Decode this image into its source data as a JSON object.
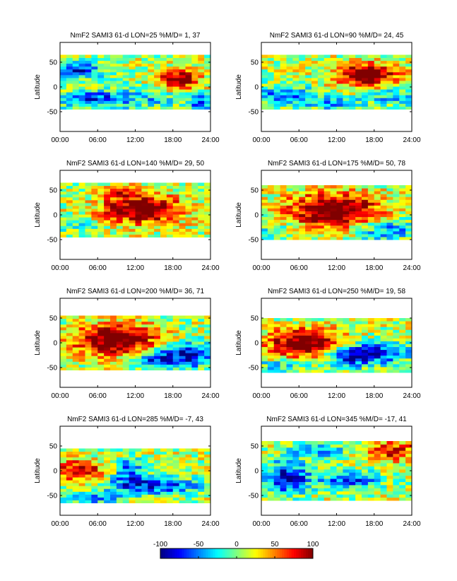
{
  "figure": {
    "ylabel": "Latitude"
  },
  "colorbar": {
    "range": [
      -100,
      100
    ],
    "ticks": [
      "-100",
      "-50",
      "0",
      "50",
      "100"
    ],
    "colormap": "jet"
  },
  "chart_data": [
    {
      "type": "heatmap",
      "title": "NmF2 SAMI3 61-d LON=25 %M/D=   1,  37",
      "xlabel": "",
      "ylabel": "Latitude",
      "xticks": [
        "00:00",
        "06:00",
        "12:00",
        "18:00",
        "24:00"
      ],
      "yticks": [
        "50",
        "0",
        "-50"
      ],
      "xlim": [
        0,
        24
      ],
      "ylim": [
        -90,
        90
      ],
      "data_lat": [
        -45,
        65
      ],
      "x_bins": 24,
      "lat_bins": 19,
      "value_range": [
        -100,
        100
      ],
      "features": [
        {
          "t": 19,
          "lat": 15,
          "w": 2.4,
          "h": 14,
          "v": 100
        },
        {
          "t": 3,
          "lat": 35,
          "w": 2.5,
          "h": 12,
          "v": -90
        },
        {
          "t": 5,
          "lat": -25,
          "w": 3.5,
          "h": 12,
          "v": -65
        },
        {
          "t": 13,
          "lat": -20,
          "w": 5,
          "h": 16,
          "v": -40
        },
        {
          "t": 22.5,
          "lat": -30,
          "w": 1.5,
          "h": 10,
          "v": -75
        }
      ]
    },
    {
      "type": "heatmap",
      "title": "NmF2 SAMI3 61-d LON=90 %M/D=  24,  45",
      "xlabel": "",
      "ylabel": "Latitude",
      "xticks": [
        "00:00",
        "06:00",
        "12:00",
        "18:00",
        "24:00"
      ],
      "yticks": [
        "50",
        "0",
        "-50"
      ],
      "xlim": [
        0,
        24
      ],
      "ylim": [
        -90,
        90
      ],
      "data_lat": [
        -45,
        65
      ],
      "x_bins": 24,
      "lat_bins": 19,
      "value_range": [
        -100,
        100
      ],
      "features": [
        {
          "t": 17,
          "lat": 25,
          "w": 3.5,
          "h": 16,
          "v": 110
        },
        {
          "t": 3,
          "lat": -15,
          "w": 3.5,
          "h": 12,
          "v": -65
        },
        {
          "t": 11,
          "lat": -30,
          "w": 3,
          "h": 10,
          "v": -55
        },
        {
          "t": 21,
          "lat": -20,
          "w": 3,
          "h": 14,
          "v": -40
        }
      ]
    },
    {
      "type": "heatmap",
      "title": "NmF2 SAMI3 61-d LON=140 %M/D=  29,  50",
      "xlabel": "",
      "ylabel": "Latitude",
      "xticks": [
        "00:00",
        "06:00",
        "12:00",
        "18:00",
        "24:00"
      ],
      "yticks": [
        "50",
        "0",
        "-50"
      ],
      "xlim": [
        0,
        24
      ],
      "ylim": [
        -90,
        90
      ],
      "data_lat": [
        -45,
        65
      ],
      "x_bins": 24,
      "lat_bins": 19,
      "value_range": [
        -100,
        100
      ],
      "features": [
        {
          "t": 13,
          "lat": 12,
          "w": 4.5,
          "h": 20,
          "v": 110
        },
        {
          "t": 10,
          "lat": 50,
          "w": 2,
          "h": 10,
          "v": 60
        },
        {
          "t": 3,
          "lat": -20,
          "w": 3,
          "h": 12,
          "v": -20
        }
      ]
    },
    {
      "type": "heatmap",
      "title": "NmF2 SAMI3 61-d LON=175 %M/D=  50,  78",
      "xlabel": "",
      "ylabel": "Latitude",
      "xticks": [
        "00:00",
        "06:00",
        "12:00",
        "18:00",
        "24:00"
      ],
      "yticks": [
        "50",
        "0",
        "-50"
      ],
      "xlim": [
        0,
        24
      ],
      "ylim": [
        -90,
        90
      ],
      "data_lat": [
        -50,
        60
      ],
      "x_bins": 24,
      "lat_bins": 19,
      "value_range": [
        -100,
        100
      ],
      "features": [
        {
          "t": 11.5,
          "lat": 10,
          "w": 5,
          "h": 24,
          "v": 120
        },
        {
          "t": 20,
          "lat": -30,
          "w": 3.5,
          "h": 14,
          "v": -60
        },
        {
          "t": 2,
          "lat": -25,
          "w": 2.5,
          "h": 14,
          "v": -25
        }
      ]
    },
    {
      "type": "heatmap",
      "title": "NmF2 SAMI3 61-d LON=200 %M/D=  36,  71",
      "xlabel": "",
      "ylabel": "Latitude",
      "xticks": [
        "00:00",
        "06:00",
        "12:00",
        "18:00",
        "24:00"
      ],
      "yticks": [
        "50",
        "0",
        "-50"
      ],
      "xlim": [
        0,
        24
      ],
      "ylim": [
        -90,
        90
      ],
      "data_lat": [
        -55,
        55
      ],
      "x_bins": 24,
      "lat_bins": 19,
      "value_range": [
        -100,
        100
      ],
      "features": [
        {
          "t": 9,
          "lat": 5,
          "w": 4.5,
          "h": 22,
          "v": 120
        },
        {
          "t": 20,
          "lat": -25,
          "w": 4,
          "h": 18,
          "v": -90
        },
        {
          "t": 14,
          "lat": -35,
          "w": 2.5,
          "h": 10,
          "v": -60
        }
      ]
    },
    {
      "type": "heatmap",
      "title": "NmF2 SAMI3 61-d LON=250 %M/D=  19,  58",
      "xlabel": "",
      "ylabel": "Latitude",
      "xticks": [
        "00:00",
        "06:00",
        "12:00",
        "18:00",
        "24:00"
      ],
      "yticks": [
        "50",
        "0",
        "-50"
      ],
      "xlim": [
        0,
        24
      ],
      "ylim": [
        -90,
        90
      ],
      "data_lat": [
        -60,
        50
      ],
      "x_bins": 24,
      "lat_bins": 19,
      "value_range": [
        -100,
        100
      ],
      "features": [
        {
          "t": 7,
          "lat": 0,
          "w": 4,
          "h": 20,
          "v": 115
        },
        {
          "t": 14,
          "lat": -25,
          "w": 3,
          "h": 15,
          "v": -85
        },
        {
          "t": 19,
          "lat": -20,
          "w": 4,
          "h": 16,
          "v": -60
        },
        {
          "t": 3,
          "lat": -45,
          "w": 3,
          "h": 8,
          "v": -40
        }
      ]
    },
    {
      "type": "heatmap",
      "title": "NmF2 SAMI3 61-d LON=285 %M/D=  -7,  43",
      "xlabel": "",
      "ylabel": "Latitude",
      "xticks": [
        "00:00",
        "06:00",
        "12:00",
        "18:00",
        "24:00"
      ],
      "yticks": [
        "50",
        "0",
        "-50"
      ],
      "xlim": [
        0,
        24
      ],
      "ylim": [
        -90,
        90
      ],
      "data_lat": [
        -65,
        45
      ],
      "x_bins": 24,
      "lat_bins": 19,
      "value_range": [
        -100,
        100
      ],
      "features": [
        {
          "t": 3,
          "lat": 0,
          "w": 2.5,
          "h": 14,
          "v": 95
        },
        {
          "t": 15,
          "lat": -30,
          "w": 5,
          "h": 12,
          "v": -85
        },
        {
          "t": 11,
          "lat": 0,
          "w": 1.5,
          "h": 18,
          "v": -70
        },
        {
          "t": 5,
          "lat": -55,
          "w": 3,
          "h": 8,
          "v": -60
        }
      ]
    },
    {
      "type": "heatmap",
      "title": "NmF2 SAMI3 61-d LON=345 %M/D= -17,  41",
      "xlabel": "",
      "ylabel": "Latitude",
      "xticks": [
        "00:00",
        "06:00",
        "12:00",
        "18:00",
        "24:00"
      ],
      "yticks": [
        "50",
        "0",
        "-50"
      ],
      "xlim": [
        0,
        24
      ],
      "ylim": [
        -90,
        90
      ],
      "data_lat": [
        -60,
        60
      ],
      "x_bins": 24,
      "lat_bins": 19,
      "value_range": [
        -100,
        100
      ],
      "features": [
        {
          "t": 4,
          "lat": -15,
          "w": 2.5,
          "h": 22,
          "v": -100
        },
        {
          "t": 14,
          "lat": -20,
          "w": 3.5,
          "h": 12,
          "v": -70
        },
        {
          "t": 9,
          "lat": 40,
          "w": 3,
          "h": 10,
          "v": -55
        },
        {
          "t": 21,
          "lat": 40,
          "w": 3,
          "h": 14,
          "v": 75
        }
      ]
    }
  ]
}
